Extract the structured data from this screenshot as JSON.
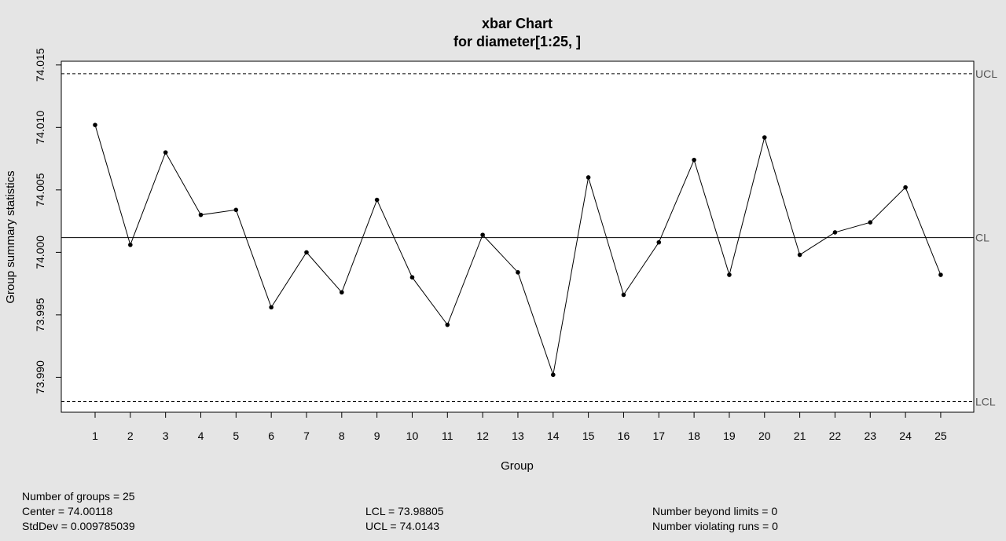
{
  "chart_data": {
    "type": "line",
    "title": "xbar Chart",
    "subtitle": "for diameter[1:25, ]",
    "xlabel": "Group",
    "ylabel": "Group summary statistics",
    "x": [
      1,
      2,
      3,
      4,
      5,
      6,
      7,
      8,
      9,
      10,
      11,
      12,
      13,
      14,
      15,
      16,
      17,
      18,
      19,
      20,
      21,
      22,
      23,
      24,
      25
    ],
    "values": [
      74.0102,
      74.0006,
      74.008,
      74.003,
      74.0034,
      73.9956,
      74.0,
      73.9968,
      74.0042,
      73.998,
      73.9942,
      74.0014,
      73.9984,
      73.9902,
      74.006,
      73.9966,
      74.0008,
      74.0074,
      73.9982,
      74.0092,
      73.9998,
      74.0016,
      74.0024,
      74.0052,
      73.9982
    ],
    "ylim": [
      73.9872,
      74.0153
    ],
    "yticks": [
      "73.990",
      "73.995",
      "74.000",
      "74.005",
      "74.010",
      "74.015"
    ],
    "limits": {
      "ucl": {
        "label": "UCL",
        "value": 74.0143
      },
      "cl": {
        "label": "CL",
        "value": 74.00118
      },
      "lcl": {
        "label": "LCL",
        "value": 73.98805
      }
    },
    "grid": false,
    "legend": "none"
  },
  "stats": {
    "groups": "Number of groups = 25",
    "center": "Center = 74.00118",
    "stddev": "StdDev = 0.009785039",
    "lcl": "LCL = 73.98805",
    "ucl": "UCL = 74.0143",
    "beyond": "Number beyond limits = 0",
    "violating": "Number violating runs = 0"
  }
}
